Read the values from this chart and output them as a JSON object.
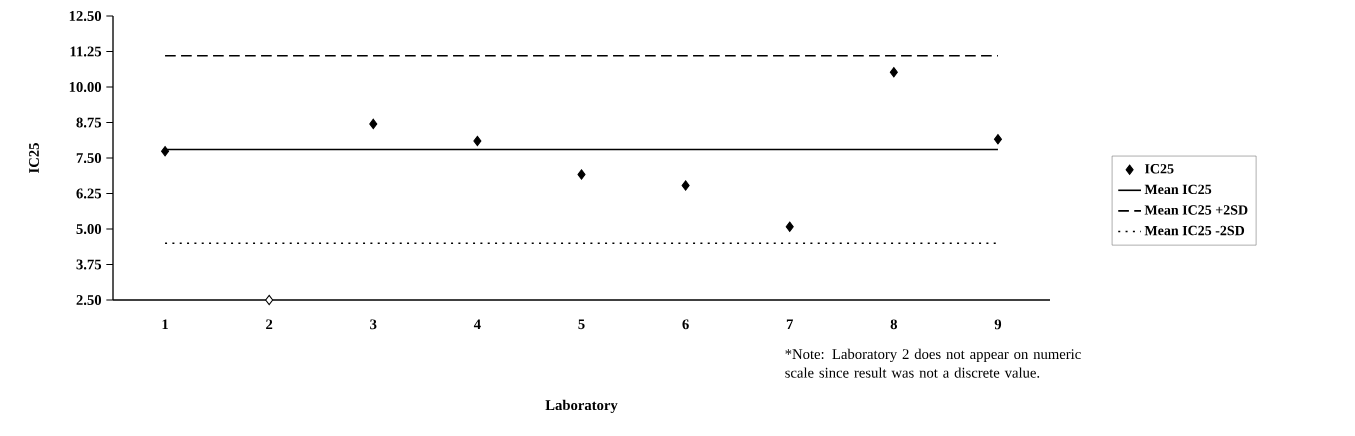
{
  "chart_data": {
    "type": "scatter",
    "xlabel": "Laboratory",
    "ylabel": "IC25",
    "categories": [
      "1",
      "2",
      "3",
      "4",
      "5",
      "6",
      "7",
      "8",
      "9"
    ],
    "ylim": [
      2.5,
      12.5
    ],
    "yticks": [
      {
        "value": 2.5,
        "label": "2.50"
      },
      {
        "value": 3.75,
        "label": "3.75"
      },
      {
        "value": 5,
        "label": "5.00"
      },
      {
        "value": 6.25,
        "label": "6.25"
      },
      {
        "value": 7.5,
        "label": "7.50"
      },
      {
        "value": 8.75,
        "label": "8.75"
      },
      {
        "value": 10,
        "label": "10.00"
      },
      {
        "value": 11.25,
        "label": "11.25"
      },
      {
        "value": 12.5,
        "label": "12.50"
      }
    ],
    "series": [
      {
        "name": "IC25",
        "marker": "diamond",
        "color": "#000000",
        "values": [
          7.74,
          null,
          8.7,
          8.1,
          6.92,
          6.53,
          5.08,
          10.52,
          8.16
        ]
      },
      {
        "marker": "diamond",
        "color": "#ffffff",
        "values": [
          null,
          2.5,
          null,
          null,
          null,
          null,
          null,
          null,
          null
        ]
      },
      {
        "name": "Mean IC25",
        "type": "line",
        "line_style": "solid",
        "color": "#000000",
        "values": [
          7.8,
          7.8,
          7.8,
          7.8,
          7.8,
          7.8,
          7.8,
          7.8,
          7.8
        ]
      },
      {
        "name": "Mean IC25 +2SD",
        "type": "line",
        "line_style": "dashed",
        "color": "#000000",
        "values": [
          11.1,
          11.1,
          11.1,
          11.1,
          11.1,
          11.1,
          11.1,
          11.1,
          11.1
        ]
      },
      {
        "name": "Mean IC25 -2SD",
        "type": "line",
        "line_style": "dotted",
        "color": "#000000",
        "values": [
          4.5,
          4.5,
          4.5,
          4.5,
          4.5,
          4.5,
          4.5,
          4.5,
          4.5
        ]
      }
    ],
    "legend": "right",
    "annotations": [
      "*Note: Laboratory 2 does not appear on numeric scale since result was not a discrete value."
    ]
  }
}
